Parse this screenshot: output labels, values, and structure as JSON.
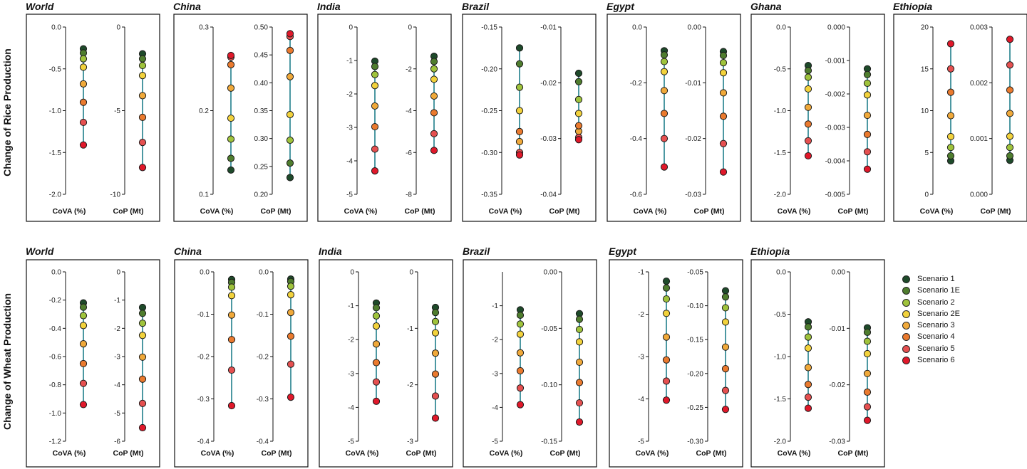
{
  "row_titles": [
    "Change of Rice Production",
    "Change of Wheat Production"
  ],
  "scenarios": [
    "Scenario 1",
    "Scenario 1E",
    "Scenario 2",
    "Scenario 2E",
    "Scenario 3",
    "Scenario 4",
    "Scenario 5",
    "Scenario 6"
  ],
  "scenario_colors": [
    "#1e4a2a",
    "#4f7d2e",
    "#9fc33c",
    "#f2d23c",
    "#f0a93a",
    "#ea7a2e",
    "#e55050",
    "#e0182a"
  ],
  "stem_color": "#1f7f8a",
  "chart_data": [
    {
      "type": "scatter",
      "row": 0,
      "title": "World",
      "panels": [
        {
          "label": "CoVA (%)",
          "ylim": [
            -2.0,
            0.0
          ],
          "ticks": [
            -2.0,
            -1.5,
            -1.0,
            -0.5,
            0.0
          ],
          "tick_labels": [
            "-2.0",
            "-1.5",
            "-1.0",
            "-0.5",
            "0.0"
          ],
          "values": [
            -0.26,
            -0.31,
            -0.38,
            -0.48,
            -0.68,
            -0.9,
            -1.14,
            -1.41
          ]
        },
        {
          "label": "CoP (Mt)",
          "ylim": [
            -10,
            0
          ],
          "ticks": [
            -10,
            -5,
            0
          ],
          "tick_labels": [
            "-10",
            "-5",
            "0"
          ],
          "values": [
            -1.6,
            -1.9,
            -2.3,
            -2.9,
            -4.1,
            -5.4,
            -6.9,
            -8.4
          ]
        }
      ]
    },
    {
      "type": "scatter",
      "row": 0,
      "title": "China",
      "panels": [
        {
          "label": "CoVA (%)",
          "ylim": [
            0.1,
            0.3
          ],
          "ticks": [
            0.1,
            0.2,
            0.3
          ],
          "tick_labels": [
            "0.1",
            "0.2",
            "0.3"
          ],
          "values": [
            0.129,
            0.143,
            0.166,
            0.191,
            0.227,
            0.255,
            0.264,
            0.266
          ]
        },
        {
          "label": "CoP (Mt)",
          "ylim": [
            0.2,
            0.5
          ],
          "ticks": [
            0.2,
            0.25,
            0.3,
            0.35,
            0.4,
            0.45,
            0.5
          ],
          "tick_labels": [
            "0.20",
            "0.25",
            "0.30",
            "0.35",
            "0.40",
            "0.45",
            "0.50"
          ],
          "values": [
            0.23,
            0.256,
            0.297,
            0.343,
            0.411,
            0.458,
            0.483,
            0.488
          ]
        }
      ]
    },
    {
      "type": "scatter",
      "row": 0,
      "title": "India",
      "panels": [
        {
          "label": "CoVA (%)",
          "ylim": [
            -5,
            0
          ],
          "ticks": [
            -5,
            -4,
            -3,
            -2,
            -1,
            0
          ],
          "tick_labels": [
            "-5",
            "-4",
            "-3",
            "-2",
            "-1",
            "0"
          ],
          "values": [
            -1.02,
            -1.18,
            -1.42,
            -1.75,
            -2.36,
            -2.98,
            -3.65,
            -4.3
          ]
        },
        {
          "label": "CoP (Mt)",
          "ylim": [
            -8,
            0
          ],
          "ticks": [
            -8,
            -6,
            -4,
            -2,
            0
          ],
          "tick_labels": [
            "-8",
            "-6",
            "-4",
            "-2",
            "0"
          ],
          "values": [
            -1.4,
            -1.65,
            -2.0,
            -2.5,
            -3.3,
            -4.1,
            -5.1,
            -5.9
          ]
        }
      ]
    },
    {
      "type": "scatter",
      "row": 0,
      "title": "Brazil",
      "panels": [
        {
          "label": "CoVA (%)",
          "ylim": [
            -0.35,
            -0.15
          ],
          "ticks": [
            -0.35,
            -0.3,
            -0.25,
            -0.2,
            -0.15
          ],
          "tick_labels": [
            "-0.35",
            "-0.30",
            "-0.25",
            "-0.20",
            "-0.15"
          ],
          "values": [
            -0.175,
            -0.194,
            -0.222,
            -0.25,
            -0.287,
            -0.275,
            -0.3,
            -0.303
          ]
        },
        {
          "label": "CoP (Mt)",
          "ylim": [
            -0.04,
            -0.01
          ],
          "ticks": [
            -0.04,
            -0.03,
            -0.02,
            -0.01
          ],
          "tick_labels": [
            "-0.04",
            "-0.03",
            "-0.02",
            "-0.01"
          ],
          "values": [
            -0.0183,
            -0.0198,
            -0.023,
            -0.0255,
            -0.0287,
            -0.0277,
            -0.0298,
            -0.0302
          ]
        }
      ]
    },
    {
      "type": "scatter",
      "row": 0,
      "title": "Egypt",
      "panels": [
        {
          "label": "CoVA (%)",
          "ylim": [
            -0.6,
            0.0
          ],
          "ticks": [
            -0.6,
            -0.4,
            -0.2,
            0.0
          ],
          "tick_labels": [
            "-0.6",
            "-0.4",
            "-0.2",
            "0.0"
          ],
          "values": [
            -0.085,
            -0.1,
            -0.124,
            -0.16,
            -0.228,
            -0.31,
            -0.4,
            -0.502
          ]
        },
        {
          "label": "CoP (Mt)",
          "ylim": [
            -0.03,
            0.0
          ],
          "ticks": [
            -0.03,
            -0.02,
            -0.01,
            0.0
          ],
          "tick_labels": [
            "-0.03",
            "-0.02",
            "-0.01",
            "0.00"
          ],
          "values": [
            -0.0044,
            -0.0051,
            -0.0064,
            -0.0082,
            -0.0118,
            -0.016,
            -0.0209,
            -0.026
          ]
        }
      ]
    },
    {
      "type": "scatter",
      "row": 0,
      "title": "Ghana",
      "panels": [
        {
          "label": "CoVA (%)",
          "ylim": [
            -2.0,
            0.0
          ],
          "ticks": [
            -2.0,
            -1.5,
            -1.0,
            -0.5,
            0.0
          ],
          "tick_labels": [
            "-2.0",
            "-1.5",
            "-1.0",
            "-0.5",
            "0.0"
          ],
          "values": [
            -0.46,
            -0.52,
            -0.6,
            -0.74,
            -0.96,
            -1.16,
            -1.36,
            -1.54
          ]
        },
        {
          "label": "CoP (Mt)",
          "ylim": [
            -0.005,
            0.0
          ],
          "ticks": [
            -0.005,
            -0.004,
            -0.003,
            -0.002,
            -0.001,
            0.0
          ],
          "tick_labels": [
            "-0.005",
            "-0.004",
            "-0.003",
            "-0.002",
            "-0.001",
            "0.000"
          ],
          "values": [
            -0.00125,
            -0.00142,
            -0.00168,
            -0.00203,
            -0.00264,
            -0.00321,
            -0.00373,
            -0.00425
          ]
        }
      ]
    },
    {
      "type": "scatter",
      "row": 0,
      "title": "Ethiopia",
      "panels": [
        {
          "label": "CoVA (%)",
          "ylim": [
            0,
            20
          ],
          "ticks": [
            0,
            5,
            10,
            15,
            20
          ],
          "tick_labels": [
            "0",
            "5",
            "10",
            "15",
            "20"
          ],
          "values": [
            4.0,
            4.6,
            5.6,
            6.9,
            9.4,
            12.2,
            15.0,
            18.0
          ]
        },
        {
          "label": "CoP (Mt)",
          "ylim": [
            0.0,
            0.003
          ],
          "ticks": [
            0.0,
            0.001,
            0.002,
            0.003
          ],
          "tick_labels": [
            "0.000",
            "0.001",
            "0.002",
            "0.003"
          ],
          "values": [
            0.00061,
            0.00069,
            0.00084,
            0.00104,
            0.00145,
            0.00187,
            0.00232,
            0.00278
          ]
        }
      ]
    },
    {
      "type": "scatter",
      "row": 1,
      "title": "World",
      "panels": [
        {
          "label": "CoVA (%)",
          "ylim": [
            -1.2,
            0.0
          ],
          "ticks": [
            -1.2,
            -1.0,
            -0.8,
            -0.6,
            -0.4,
            -0.2,
            0.0
          ],
          "tick_labels": [
            "-1.2",
            "-1.0",
            "-0.8",
            "-0.6",
            "-0.4",
            "-0.2",
            "0.0"
          ],
          "values": [
            -0.22,
            -0.25,
            -0.31,
            -0.38,
            -0.51,
            -0.65,
            -0.79,
            -0.94
          ]
        },
        {
          "label": "CoP (Mt)",
          "ylim": [
            -6,
            0
          ],
          "ticks": [
            -6,
            -5,
            -4,
            -3,
            -2,
            -1,
            0
          ],
          "tick_labels": [
            "-6",
            "-5",
            "-4",
            "-3",
            "-2",
            "-1",
            "0"
          ],
          "values": [
            -1.26,
            -1.47,
            -1.82,
            -2.25,
            -3.02,
            -3.8,
            -4.66,
            -5.52
          ]
        }
      ]
    },
    {
      "type": "scatter",
      "row": 1,
      "title": "China",
      "panels": [
        {
          "label": "CoVA (%)",
          "ylim": [
            -0.4,
            0.0
          ],
          "ticks": [
            -0.4,
            -0.3,
            -0.2,
            -0.1,
            0.0
          ],
          "tick_labels": [
            "-0.4",
            "-0.3",
            "-0.2",
            "-0.1",
            "0.0"
          ],
          "values": [
            -0.018,
            -0.025,
            -0.036,
            -0.056,
            -0.102,
            -0.16,
            -0.232,
            -0.316
          ]
        },
        {
          "label": "CoP (Mt)",
          "ylim": [
            -0.4,
            0.0
          ],
          "ticks": [
            -0.4,
            -0.3,
            -0.2,
            -0.1,
            0.0
          ],
          "tick_labels": [
            "-0.4",
            "-0.3",
            "-0.2",
            "-0.1",
            "0.0"
          ],
          "values": [
            -0.017,
            -0.023,
            -0.034,
            -0.054,
            -0.096,
            -0.152,
            -0.218,
            -0.296
          ]
        }
      ]
    },
    {
      "type": "scatter",
      "row": 1,
      "title": "India",
      "panels": [
        {
          "label": "CoVA (%)",
          "ylim": [
            -5,
            0
          ],
          "ticks": [
            -5,
            -4,
            -3,
            -2,
            -1,
            0
          ],
          "tick_labels": [
            "-5",
            "-4",
            "-3",
            "-2",
            "-1",
            "0"
          ],
          "values": [
            -0.92,
            -1.06,
            -1.3,
            -1.6,
            -2.13,
            -2.68,
            -3.25,
            -3.82
          ]
        },
        {
          "label": "CoP (Mt)",
          "ylim": [
            -3,
            0
          ],
          "ticks": [
            -3,
            -2,
            -1,
            0
          ],
          "tick_labels": [
            "-3",
            "-2",
            "-1",
            "0"
          ],
          "values": [
            -0.63,
            -0.72,
            -0.88,
            -1.08,
            -1.44,
            -1.81,
            -2.2,
            -2.59
          ]
        }
      ]
    },
    {
      "type": "scatter",
      "row": 1,
      "title": "Brazil",
      "panels": [
        {
          "label": "CoVA (%)",
          "ylim": [
            -5,
            0
          ],
          "ticks": [
            -5,
            -4,
            -3,
            -2,
            -1
          ],
          "tick_labels": [
            "-5",
            "-4",
            "-3",
            "-2",
            "-1"
          ],
          "values": [
            -1.12,
            -1.28,
            -1.54,
            -1.84,
            -2.39,
            -2.92,
            -3.43,
            -3.92
          ]
        },
        {
          "label": "CoP (Mt)",
          "ylim": [
            -0.15,
            0.0
          ],
          "ticks": [
            -0.15,
            -0.1,
            -0.05,
            0.0
          ],
          "tick_labels": [
            "-0.15",
            "-0.10",
            "-0.05",
            "0.00"
          ],
          "values": [
            -0.037,
            -0.042,
            -0.051,
            -0.062,
            -0.08,
            -0.098,
            -0.116,
            -0.133
          ]
        }
      ]
    },
    {
      "type": "scatter",
      "row": 1,
      "title": "Egypt",
      "panels": [
        {
          "label": "CoVA (%)",
          "ylim": [
            -5,
            -1
          ],
          "ticks": [
            -5,
            -4,
            -3,
            -2,
            -1
          ],
          "tick_labels": [
            "-5",
            "-4",
            "-3",
            "-2",
            "-1"
          ],
          "values": [
            -1.22,
            -1.38,
            -1.64,
            -1.98,
            -2.54,
            -3.08,
            -3.58,
            -4.03
          ]
        },
        {
          "label": "CoP (Mt)",
          "ylim": [
            -0.3,
            -0.05
          ],
          "ticks": [
            -0.3,
            -0.25,
            -0.2,
            -0.15,
            -0.1,
            -0.05
          ],
          "tick_labels": [
            "-0.30",
            "-0.25",
            "-0.20",
            "-0.15",
            "-0.10",
            "-0.05"
          ],
          "values": [
            -0.078,
            -0.087,
            -0.103,
            -0.124,
            -0.161,
            -0.193,
            -0.225,
            -0.253
          ]
        }
      ]
    },
    {
      "type": "scatter",
      "row": 1,
      "title": "Ethiopia",
      "panels": [
        {
          "label": "CoVA (%)",
          "ylim": [
            -2.0,
            0.0
          ],
          "ticks": [
            -2.0,
            -1.5,
            -1.0,
            -0.5,
            0.0
          ],
          "tick_labels": [
            "-2.0",
            "-1.5",
            "-1.0",
            "-0.5",
            "0.0"
          ],
          "values": [
            -0.59,
            -0.65,
            -0.77,
            -0.9,
            -1.13,
            -1.33,
            -1.48,
            -1.61
          ]
        },
        {
          "label": "CoP (Mt)",
          "ylim": [
            -0.03,
            0.0
          ],
          "ticks": [
            -0.03,
            -0.02,
            -0.01,
            0.0
          ],
          "tick_labels": [
            "-0.03",
            "-0.02",
            "-0.01",
            "0.00"
          ],
          "values": [
            -0.0099,
            -0.0107,
            -0.0123,
            -0.0145,
            -0.018,
            -0.0213,
            -0.0239,
            -0.0263
          ]
        }
      ]
    }
  ]
}
